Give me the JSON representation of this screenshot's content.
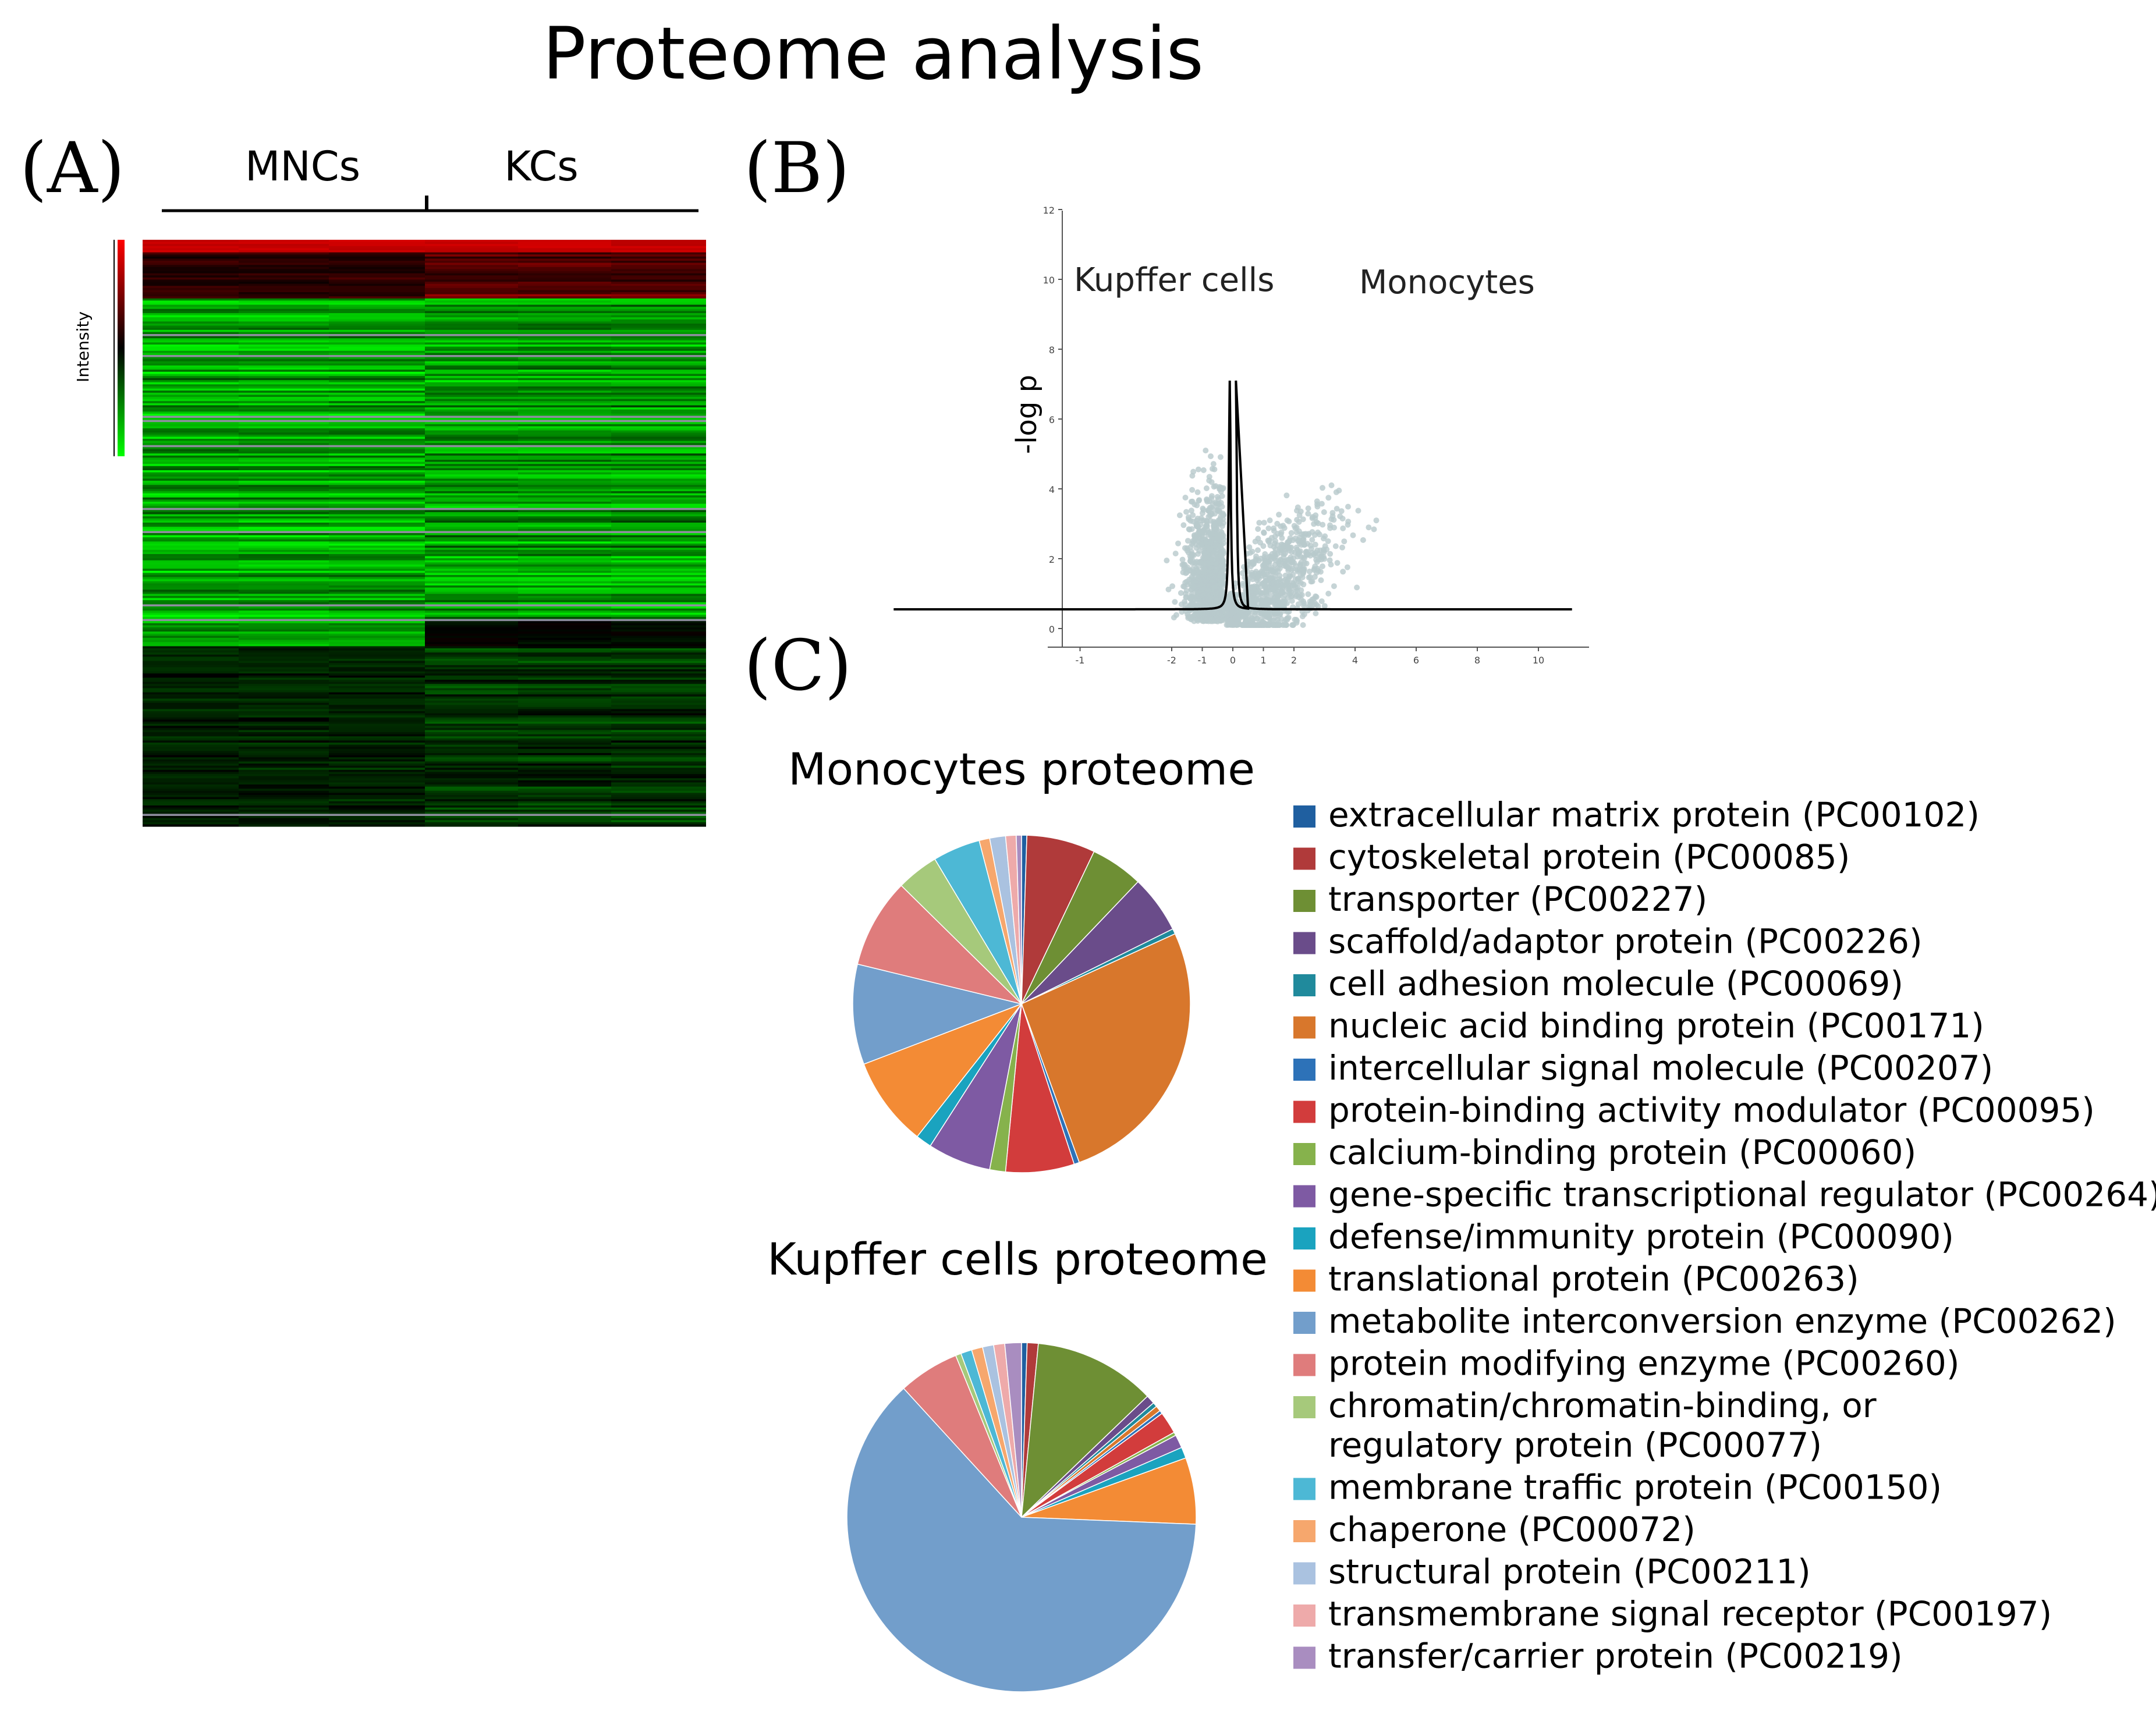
{
  "title": "Proteome analysis",
  "panels": {
    "a": "(A)",
    "b": "(B)",
    "c": "(C)"
  },
  "chart_data": [
    {
      "panel": "A",
      "type": "heatmap",
      "column_groups": [
        "MNCs",
        "KCs"
      ],
      "colorbar_label": "Intensity",
      "colors": {
        "high": "#ff0000",
        "mid": "#000000",
        "low": "#00ff00",
        "missing": "#8e8e9f"
      }
    },
    {
      "panel": "B",
      "type": "scatter",
      "ylabel": "-log p",
      "annotations": [
        "Kupffer cells",
        "Monocytes"
      ],
      "x_ticks": [
        "-1",
        "-2",
        "-1",
        "0",
        "1",
        "2",
        "4",
        "6",
        "8",
        "10"
      ],
      "y_ticks": [
        "0",
        "2",
        "4",
        "6",
        "8",
        "10",
        "12"
      ],
      "point_color": "#b8c9cc"
    },
    {
      "panel": "C",
      "type": "pie",
      "charts": [
        {
          "title": "Monocytes proteome",
          "values": [
            0.5,
            6.5,
            5,
            5.5,
            0.5,
            26,
            0.5,
            6.5,
            1.5,
            6,
            1.5,
            8.5,
            9.5,
            8.5,
            4,
            4.5,
            1,
            1.5,
            1,
            0.5
          ]
        },
        {
          "title": "Kupffer cells proteome",
          "values": [
            0.5,
            1,
            11,
            0.8,
            0.4,
            0.5,
            0.3,
            2,
            0.3,
            1.2,
            1,
            6,
            61,
            5.5,
            0.5,
            1,
            1,
            1,
            1,
            1.5
          ]
        }
      ],
      "legend": [
        {
          "label": "extracellular matrix protein (PC00102)",
          "color": "#1f5fa0"
        },
        {
          "label": "cytoskeletal protein (PC00085)",
          "color": "#b03a3a"
        },
        {
          "label": "transporter (PC00227)",
          "color": "#6e8f34"
        },
        {
          "label": "scaffold/adaptor protein (PC00226)",
          "color": "#6a4c8a"
        },
        {
          "label": "cell adhesion molecule (PC00069)",
          "color": "#208a9c"
        },
        {
          "label": "nucleic acid binding protein (PC00171)",
          "color": "#d8772c"
        },
        {
          "label": "intercellular signal molecule (PC00207)",
          "color": "#2d72b8"
        },
        {
          "label": "protein-binding activity modulator (PC00095)",
          "color": "#d23c3c"
        },
        {
          "label": "calcium-binding protein (PC00060)",
          "color": "#86b24c"
        },
        {
          "label": "gene-specific transcriptional regulator (PC00264)",
          "color": "#7e5aa3"
        },
        {
          "label": "defense/immunity protein (PC00090)",
          "color": "#1aa3bf"
        },
        {
          "label": "translational protein (PC00263)",
          "color": "#f38b35"
        },
        {
          "label": "metabolite interconversion enzyme (PC00262)",
          "color": "#729ecb"
        },
        {
          "label": "protein modifying enzyme (PC00260)",
          "color": "#df7c7c"
        },
        {
          "label": "chromatin/chromatin-binding, or",
          "label2": "regulatory protein (PC00077)",
          "color": "#a6c97b"
        },
        {
          "label": "membrane traffic protein (PC00150)",
          "color": "#4db8d5"
        },
        {
          "label": "chaperone (PC00072)",
          "color": "#f6a76d"
        },
        {
          "label": "structural protein (PC00211)",
          "color": "#aac2e0"
        },
        {
          "label": "transmembrane signal receptor (PC00197)",
          "color": "#eeaaaa"
        },
        {
          "label": "transfer/carrier protein (PC00219)",
          "color": "#a98dc0"
        }
      ]
    }
  ]
}
